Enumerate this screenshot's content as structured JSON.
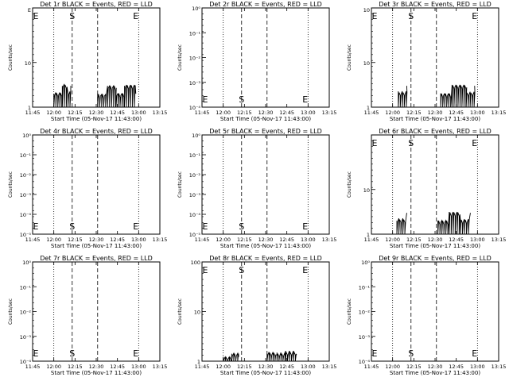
{
  "chart_data": [
    {
      "type": "line",
      "title": "Det 1r BLACK = Events, RED = LLD",
      "ylabel": "Counts/sec",
      "xlabel": "Start Time (05-Nov-17 11:43:00)",
      "x_ticks": [
        "11:45",
        "12:00",
        "12:15",
        "12:30",
        "12:45",
        "13:00",
        "13:15"
      ],
      "y_scale": "log",
      "y_ticks": [
        "1",
        "10"
      ],
      "y_top_label": "E",
      "markers": [
        {
          "label": "E",
          "time": "11:45"
        },
        {
          "label": "S",
          "time": "12:13"
        },
        {
          "label": "E",
          "time": "12:58"
        }
      ],
      "marker_row": "top",
      "series": [
        {
          "values": [
            {
              "t": "12:00",
              "y": 2
            },
            {
              "t": "12:06",
              "y": 3
            },
            {
              "t": "12:10",
              "y": 2
            },
            {
              "t": "12:12",
              "y": 3
            }
          ]
        },
        {
          "values": [
            {
              "t": "12:31",
              "y": 2
            },
            {
              "t": "12:38",
              "y": 3
            },
            {
              "t": "12:44",
              "y": 2
            },
            {
              "t": "12:50",
              "y": 3
            },
            {
              "t": "12:58",
              "y": 2
            }
          ]
        }
      ]
    },
    {
      "type": "line",
      "title": "Det 2r BLACK = Events, RED = LLD",
      "ylabel": "Counts/sec",
      "xlabel": "Start Time (05-Nov-17 11:43:00)",
      "x_ticks": [
        "11:45",
        "12:00",
        "12:15",
        "12:30",
        "12:45",
        "13:00",
        "13:15"
      ],
      "y_scale": "log",
      "y_ticks": [
        "10⁻⁴",
        "10⁻³",
        "10⁻²",
        "10⁻¹",
        "10⁰"
      ],
      "markers": [
        {
          "label": "E",
          "time": "11:45"
        },
        {
          "label": "S",
          "time": "12:13"
        },
        {
          "label": "E",
          "time": "12:58"
        }
      ],
      "marker_row": "bottom",
      "series": []
    },
    {
      "type": "line",
      "title": "Det 3r BLACK = Events, RED = LLD",
      "ylabel": "Counts/sec",
      "xlabel": "Start Time (05-Nov-17 11:43:00)",
      "x_ticks": [
        "11:45",
        "12:00",
        "12:15",
        "12:30",
        "12:45",
        "13:00",
        "13:15"
      ],
      "y_scale": "log",
      "y_ticks": [
        "1",
        "10"
      ],
      "y_top_label": "10",
      "markers": [
        {
          "label": "E",
          "time": "11:45"
        },
        {
          "label": "S",
          "time": "12:13"
        },
        {
          "label": "E",
          "time": "12:58"
        }
      ],
      "marker_row": "top",
      "series": [
        {
          "values": [
            {
              "t": "12:04",
              "y": 2
            },
            {
              "t": "12:10",
              "y": 3
            }
          ]
        },
        {
          "values": [
            {
              "t": "12:34",
              "y": 2
            },
            {
              "t": "12:42",
              "y": 3
            },
            {
              "t": "12:52",
              "y": 2
            },
            {
              "t": "12:58",
              "y": 3
            }
          ]
        }
      ]
    },
    {
      "type": "line",
      "title": "Det 4r BLACK = Events, RED = LLD",
      "ylabel": "Counts/sec",
      "xlabel": "Start Time (05-Nov-17 11:43:00)",
      "x_ticks": [
        "11:45",
        "12:00",
        "12:15",
        "12:30",
        "12:45",
        "13:00",
        "13:15"
      ],
      "y_scale": "log",
      "y_ticks": [
        "10⁻⁵",
        "10⁻⁴",
        "10⁻³",
        "10⁻²",
        "10⁻¹",
        "10⁰"
      ],
      "markers": [
        {
          "label": "E",
          "time": "11:45"
        },
        {
          "label": "S",
          "time": "12:13"
        },
        {
          "label": "E",
          "time": "12:58"
        }
      ],
      "marker_row": "bottom",
      "series": []
    },
    {
      "type": "line",
      "title": "Det 5r BLACK = Events, RED = LLD",
      "ylabel": "Counts/sec",
      "xlabel": "Start Time (05-Nov-17 11:43:00)",
      "x_ticks": [
        "11:45",
        "12:00",
        "12:15",
        "12:30",
        "12:45",
        "13:00",
        "13:15"
      ],
      "y_scale": "log",
      "y_ticks": [
        "10⁻⁵",
        "10⁻⁴",
        "10⁻³",
        "10⁻²",
        "10⁻¹",
        "10⁰"
      ],
      "markers": [
        {
          "label": "E",
          "time": "11:45"
        },
        {
          "label": "S",
          "time": "12:13"
        },
        {
          "label": "E",
          "time": "12:58"
        }
      ],
      "marker_row": "bottom",
      "series": []
    },
    {
      "type": "line",
      "title": "Det 6r BLACK = Events, RED = LLD",
      "ylabel": "Counts/sec",
      "xlabel": "Start Time (05-Nov-17 11:43:00)",
      "x_ticks": [
        "11:45",
        "12:00",
        "12:15",
        "12:30",
        "12:45",
        "13:00",
        "13:15"
      ],
      "y_scale": "log",
      "y_ticks": [
        "1",
        "10"
      ],
      "markers": [
        {
          "label": "E",
          "time": "11:45"
        },
        {
          "label": "S",
          "time": "12:13"
        },
        {
          "label": "E",
          "time": "12:58"
        }
      ],
      "marker_row": "top",
      "series": [
        {
          "values": [
            {
              "t": "12:03",
              "y": 2
            },
            {
              "t": "12:10",
              "y": 3
            }
          ]
        },
        {
          "values": [
            {
              "t": "12:32",
              "y": 2
            },
            {
              "t": "12:40",
              "y": 3
            },
            {
              "t": "12:48",
              "y": 2
            },
            {
              "t": "12:55",
              "y": 3
            }
          ]
        }
      ]
    },
    {
      "type": "line",
      "title": "Det 7r BLACK = Events, RED = LLD",
      "ylabel": "Counts/sec",
      "xlabel": "Start Time (05-Nov-17 11:43:00)",
      "x_ticks": [
        "11:45",
        "12:00",
        "12:15",
        "12:30",
        "12:45",
        "13:00",
        "13:15"
      ],
      "y_scale": "log",
      "y_ticks": [
        "10⁻⁴",
        "10⁻³",
        "10⁻²",
        "10⁻¹",
        "10⁰"
      ],
      "markers": [
        {
          "label": "E",
          "time": "11:45"
        },
        {
          "label": "S",
          "time": "12:13"
        },
        {
          "label": "E",
          "time": "12:58"
        }
      ],
      "marker_row": "bottom",
      "series": []
    },
    {
      "type": "line",
      "title": "Det 8r BLACK = Events, RED = LLD",
      "ylabel": "Counts/sec",
      "xlabel": "Start Time (05-Nov-17 11:43:00)",
      "x_ticks": [
        "11:45",
        "12:00",
        "12:15",
        "12:30",
        "12:45",
        "13:00",
        "13:15"
      ],
      "y_scale": "log",
      "y_ticks": [
        "1",
        "10",
        "100"
      ],
      "markers": [
        {
          "label": "E",
          "time": "11:45"
        },
        {
          "label": "S",
          "time": "12:13"
        },
        {
          "label": "E",
          "time": "12:58"
        }
      ],
      "marker_row": "top",
      "series": [
        {
          "values": [
            {
              "t": "12:00",
              "y": 1.5
            },
            {
              "t": "12:06",
              "y": 2
            },
            {
              "t": "12:11",
              "y": 1.5
            }
          ]
        },
        {
          "values": [
            {
              "t": "12:31",
              "y": 2
            },
            {
              "t": "12:38",
              "y": 1.8
            },
            {
              "t": "12:44",
              "y": 2
            },
            {
              "t": "12:52",
              "y": 1.8
            }
          ]
        }
      ]
    },
    {
      "type": "line",
      "title": "Det 9r BLACK = Events, RED = LLD",
      "ylabel": "Counts/sec",
      "xlabel": "Start Time (05-Nov-17 11:43:00)",
      "x_ticks": [
        "11:45",
        "12:00",
        "12:15",
        "12:30",
        "12:45",
        "13:00",
        "13:15"
      ],
      "y_scale": "log",
      "y_ticks": [
        "10⁻⁴",
        "10⁻³",
        "10⁻²",
        "10⁻¹",
        "10⁰"
      ],
      "markers": [
        {
          "label": "E",
          "time": "11:45"
        },
        {
          "label": "S",
          "time": "12:13"
        },
        {
          "label": "E",
          "time": "12:58"
        }
      ],
      "marker_row": "bottom",
      "series": []
    }
  ]
}
